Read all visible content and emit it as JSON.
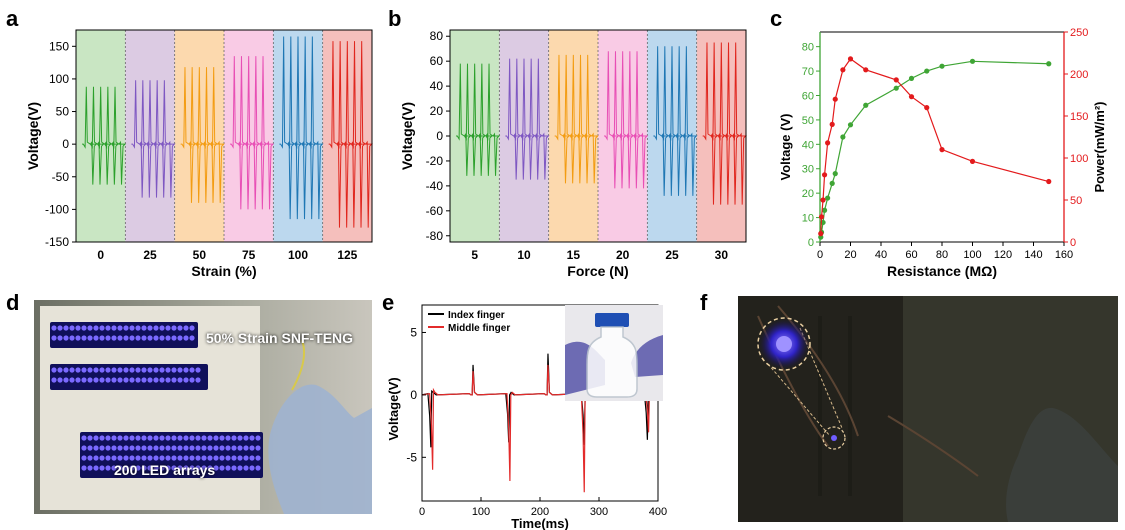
{
  "panels": {
    "a": "a",
    "b": "b",
    "c": "c",
    "d": "d",
    "e": "e",
    "f": "f"
  },
  "chart_data": [
    {
      "id": "a",
      "type": "line",
      "xlabel": "Strain (%)",
      "ylabel": "Voltage(V)",
      "ylim": [
        -150,
        175
      ],
      "yticks": [
        -150,
        -100,
        -50,
        0,
        50,
        100,
        150
      ],
      "categories": [
        "0",
        "25",
        "50",
        "75",
        "100",
        "125"
      ],
      "band_colors": [
        "#c9e6c3",
        "#dccbe3",
        "#fcd9ae",
        "#f9cbe5",
        "#bcd8ee",
        "#f5bfbc"
      ],
      "series": [
        {
          "category": "0",
          "color": "#2ca02c",
          "peak_pos": 88,
          "peak_neg": -62
        },
        {
          "category": "25",
          "color": "#7e57c2",
          "peak_pos": 98,
          "peak_neg": -82
        },
        {
          "category": "50",
          "color": "#f39c12",
          "peak_pos": 118,
          "peak_neg": -90
        },
        {
          "category": "75",
          "color": "#e84fb5",
          "peak_pos": 135,
          "peak_neg": -100
        },
        {
          "category": "100",
          "color": "#1f77b4",
          "peak_pos": 165,
          "peak_neg": -115
        },
        {
          "category": "125",
          "color": "#e0261e",
          "peak_pos": 158,
          "peak_neg": -128
        }
      ],
      "grid": false
    },
    {
      "id": "b",
      "type": "line",
      "xlabel": "Force (N)",
      "ylabel": "Voltage(V)",
      "ylim": [
        -85,
        85
      ],
      "yticks": [
        -80,
        -60,
        -40,
        -20,
        0,
        20,
        40,
        60,
        80
      ],
      "categories": [
        "5",
        "10",
        "15",
        "20",
        "25",
        "30"
      ],
      "band_colors": [
        "#c9e6c3",
        "#dccbe3",
        "#fcd9ae",
        "#f9cbe5",
        "#bcd8ee",
        "#f5bfbc"
      ],
      "series": [
        {
          "category": "5",
          "color": "#2ca02c",
          "peak_pos": 58,
          "peak_neg": -32
        },
        {
          "category": "10",
          "color": "#7e57c2",
          "peak_pos": 62,
          "peak_neg": -35
        },
        {
          "category": "15",
          "color": "#f39c12",
          "peak_pos": 65,
          "peak_neg": -38
        },
        {
          "category": "20",
          "color": "#e84fb5",
          "peak_pos": 68,
          "peak_neg": -42
        },
        {
          "category": "25",
          "color": "#1f77b4",
          "peak_pos": 72,
          "peak_neg": -48
        },
        {
          "category": "30",
          "color": "#e0261e",
          "peak_pos": 75,
          "peak_neg": -55
        }
      ],
      "grid": false
    },
    {
      "id": "c",
      "type": "line",
      "xlabel": "Resistance (MΩ)",
      "ylabel": "Voltage (V)",
      "y2label": "Power(mW/m²)",
      "xlim": [
        0,
        160
      ],
      "ylim": [
        0,
        86
      ],
      "y2lim": [
        0,
        250
      ],
      "xticks": [
        0,
        20,
        40,
        60,
        80,
        100,
        120,
        140,
        160
      ],
      "yticks": [
        0,
        10,
        20,
        30,
        40,
        50,
        60,
        70,
        80
      ],
      "y2ticks": [
        0,
        50,
        100,
        150,
        200,
        250
      ],
      "series": [
        {
          "axis": "left",
          "color": "#3fa535",
          "x": [
            0.5,
            1,
            2,
            3,
            5,
            8,
            10,
            15,
            20,
            30,
            50,
            60,
            70,
            80,
            100,
            150
          ],
          "y": [
            2,
            4,
            8,
            13,
            18,
            24,
            28,
            43,
            48,
            56,
            63,
            67,
            70,
            72,
            74,
            73
          ]
        },
        {
          "axis": "right",
          "color": "#e31a1c",
          "x": [
            0.5,
            1,
            2,
            3,
            5,
            8,
            10,
            15,
            20,
            30,
            50,
            60,
            70,
            80,
            100,
            150
          ],
          "y": [
            10,
            30,
            50,
            80,
            118,
            140,
            170,
            205,
            218,
            205,
            193,
            173,
            160,
            110,
            96,
            72
          ]
        }
      ],
      "grid": false
    },
    {
      "id": "e",
      "type": "line",
      "xlabel": "Time(ms)",
      "ylabel": "Voltage(V)",
      "xlim": [
        0,
        400
      ],
      "ylim": [
        -8.5,
        7.2
      ],
      "xticks": [
        0,
        100,
        200,
        300,
        400
      ],
      "yticks": [
        -5,
        0,
        5
      ],
      "legend": "top-left",
      "series": [
        {
          "name": "Index finger",
          "color": "#000000",
          "spikes": [
            [
              15,
              -4.2,
              0.3
            ],
            [
              85,
              0,
              2.4
            ],
            [
              147,
              -3.8,
              0
            ],
            [
              212,
              0,
              3.3
            ],
            [
              275,
              -4.0,
              0
            ],
            [
              382,
              -3.6,
              0
            ]
          ]
        },
        {
          "name": "Middle finger",
          "color": "#e32b2b",
          "spikes": [
            [
              18,
              -6.0,
              0.4
            ],
            [
              85,
              0,
              1.9
            ],
            [
              149,
              -6.9,
              0
            ],
            [
              212,
              0,
              2.4
            ],
            [
              275,
              -7.8,
              0
            ],
            [
              384,
              -3.0,
              0
            ]
          ]
        }
      ],
      "grid": false
    }
  ],
  "photos": {
    "d": {
      "caption_top": "50% Strain SNF-TENG",
      "caption_bottom": "200 LED arrays"
    }
  }
}
